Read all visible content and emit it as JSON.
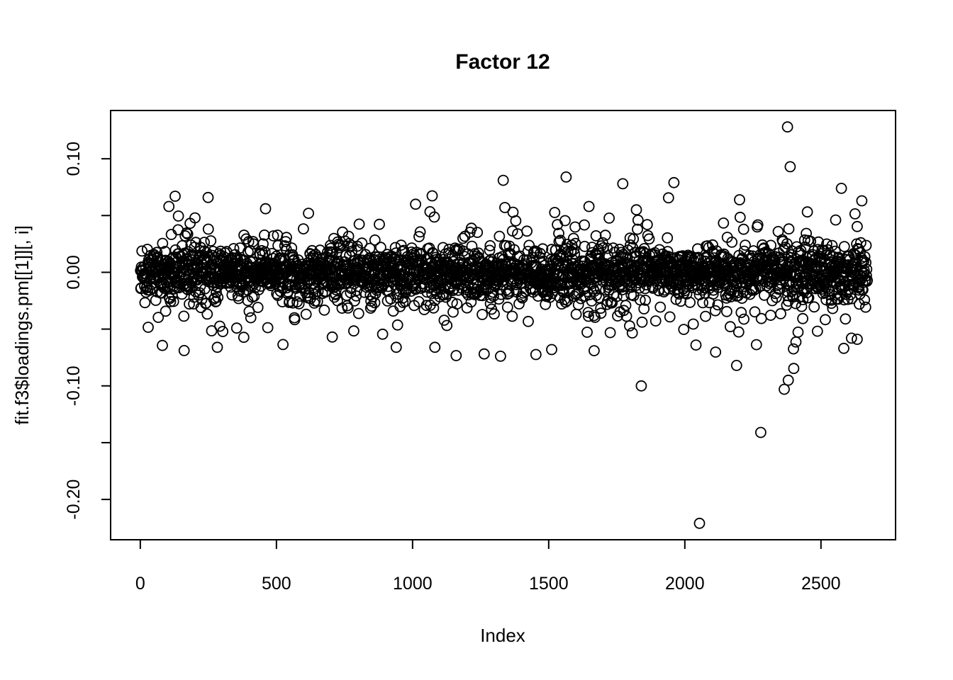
{
  "page": {
    "background_color": "#ffffff",
    "foreground_color": "#000000"
  },
  "chart_data": {
    "type": "scatter",
    "title": "Factor 12",
    "xlabel": "Index",
    "ylabel": "fit.f3$loadings.pm[[1]][, i]",
    "x_range": [
      -109,
      2774
    ],
    "y_range": [
      -0.2355,
      0.1425
    ],
    "x_ticks": [
      {
        "value": 0,
        "label": "0"
      },
      {
        "value": 500,
        "label": "500"
      },
      {
        "value": 1000,
        "label": "1000"
      },
      {
        "value": 1500,
        "label": "1500"
      },
      {
        "value": 2000,
        "label": "2000"
      },
      {
        "value": 2500,
        "label": "2500"
      }
    ],
    "y_ticks": [
      {
        "value": 0.1,
        "label": "0.10"
      },
      {
        "value": 0.05,
        "label": ""
      },
      {
        "value": 0.0,
        "label": "0.00"
      },
      {
        "value": -0.05,
        "label": ""
      },
      {
        "value": -0.1,
        "label": "-0.10"
      },
      {
        "value": -0.15,
        "label": ""
      },
      {
        "value": -0.2,
        "label": "-0.20"
      }
    ],
    "grid": false,
    "legend": "none",
    "marker": {
      "shape": "open-circle",
      "radius_px": 7,
      "stroke": "#000000",
      "stroke_width_px": 1.8
    },
    "n_points": 2670,
    "cloud_model": {
      "description": "Dense horizontal band of ~2670 open circles centered at y=0 over x index 1..n; mixture of normals, heavier tails, clipped",
      "seed": 1337,
      "mean": -0.001,
      "mixture": [
        {
          "weight": 0.58,
          "sd": 0.0105
        },
        {
          "weight": 0.24,
          "sd": 0.017
        },
        {
          "weight": 0.13,
          "sd": 0.026
        },
        {
          "weight": 0.05,
          "sd": 0.038
        }
      ],
      "clip_abs": 0.086
    },
    "outliers": [
      [
        2377,
        0.128
      ],
      [
        2387,
        0.093
      ],
      [
        1333,
        0.081
      ],
      [
        1960,
        0.079
      ],
      [
        1772,
        0.078
      ],
      [
        1011,
        0.06
      ],
      [
        128,
        0.067
      ],
      [
        105,
        0.058
      ],
      [
        460,
        0.056
      ],
      [
        2650,
        0.063
      ],
      [
        2054,
        -0.221
      ],
      [
        2279,
        -0.141
      ],
      [
        1840,
        -0.1
      ],
      [
        2365,
        -0.103
      ],
      [
        2380,
        -0.095
      ],
      [
        2190,
        -0.082
      ],
      [
        2612,
        -0.058
      ],
      [
        2633,
        -0.059
      ],
      [
        940,
        -0.066
      ],
      [
        1082,
        -0.066
      ],
      [
        1511,
        -0.068
      ],
      [
        1667,
        -0.069
      ],
      [
        283,
        -0.066
      ],
      [
        2041,
        -0.064
      ],
      [
        705,
        -0.057
      ]
    ]
  }
}
